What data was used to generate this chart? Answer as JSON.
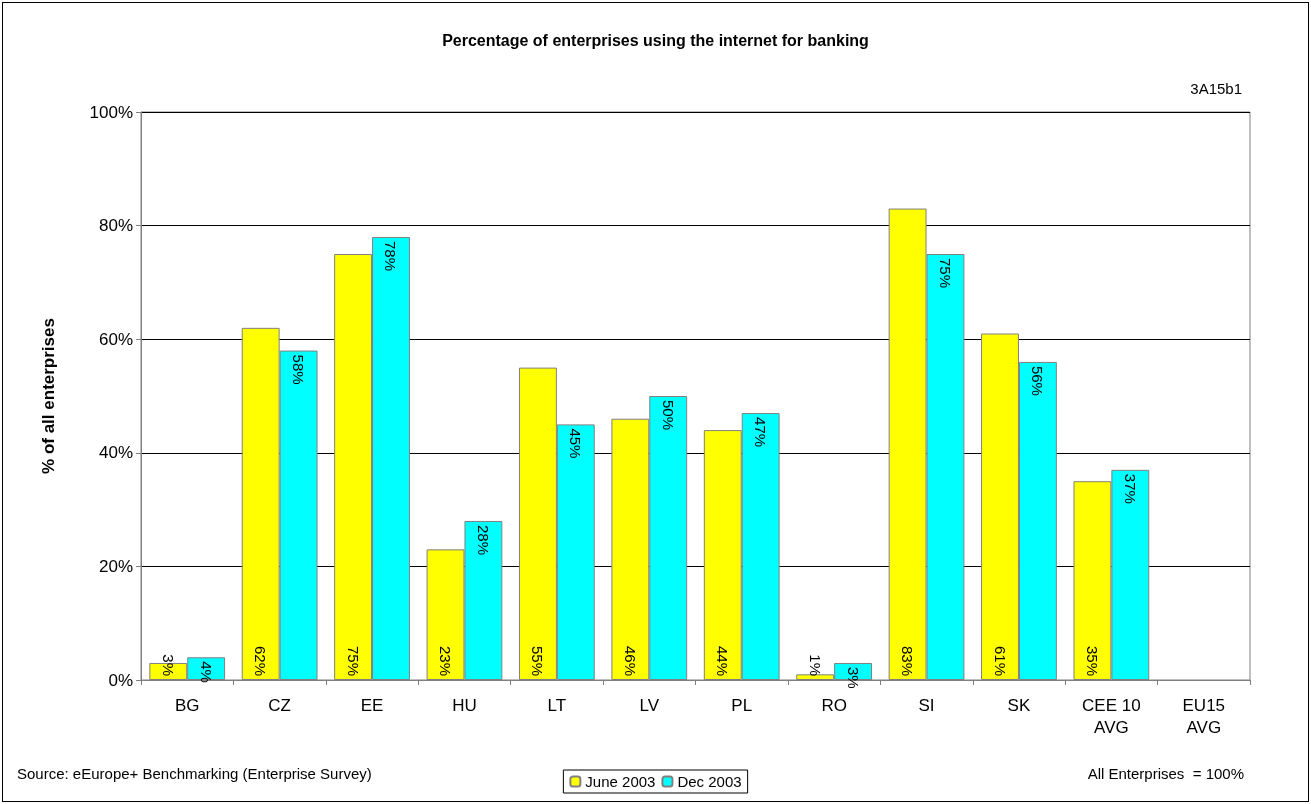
{
  "chart_data": {
    "type": "bar",
    "title": "Percentage of enterprises using the internet for banking",
    "ylabel": "% of all enterprises",
    "categories": [
      "BG",
      "CZ",
      "EE",
      "HU",
      "LT",
      "LV",
      "PL",
      "RO",
      "SI",
      "SK",
      "CEE 10\nAVG",
      "EU15\nAVG"
    ],
    "series": [
      {
        "name": "June 2003",
        "color": "#ffff00",
        "values": [
          3,
          62,
          75,
          23,
          55,
          46,
          44,
          1,
          83,
          61,
          35,
          null
        ],
        "value_labels": [
          "3%",
          "62%",
          "75%",
          "23%",
          "55%",
          "46%",
          "44%",
          "1%",
          "83%",
          "61%",
          "35%",
          null
        ]
      },
      {
        "name": "Dec 2003",
        "color": "#00ffff",
        "values": [
          4,
          58,
          78,
          28,
          45,
          50,
          47,
          3,
          75,
          56,
          37,
          null
        ],
        "value_labels": [
          "4%",
          "58%",
          "78%",
          "28%",
          "45%",
          "50%",
          "47%",
          "3%",
          "75%",
          "56%",
          "37%",
          null
        ]
      }
    ],
    "ylim": [
      0,
      100
    ],
    "yticks": [
      {
        "value": 0,
        "label": "0%"
      },
      {
        "value": 20,
        "label": "20%"
      },
      {
        "value": 40,
        "label": "40%"
      },
      {
        "value": 60,
        "label": "60%"
      },
      {
        "value": 80,
        "label": "80%"
      },
      {
        "value": 100,
        "label": "100%"
      }
    ],
    "grid": "y",
    "legend": "bottom",
    "annotations": [
      "3A15b1",
      "Source: eEurope+ Benchmarking (Enterprise Survey)",
      "All Enterprises  = 100%"
    ]
  }
}
